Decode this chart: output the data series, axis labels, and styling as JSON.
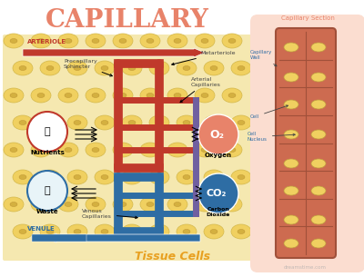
{
  "title": "CAPILLARY",
  "title_color": "#E8836A",
  "bg_color": "#FFFFFF",
  "tissue_bg_color": "#F5E6A0",
  "cell_color": "#F0D060",
  "cell_outline": "#D4B84A",
  "red_color": "#C0392B",
  "blue_color": "#2E6DA4",
  "dark_red": "#8B1A1A",
  "dark_blue": "#1A3A6A",
  "arrow_dark": "#222222",
  "section_bg": "#F5C4B0",
  "section_wall_color": "#C0634A",
  "section_cell_color": "#E8A07A",
  "section_nucleus_color": "#F0D060",
  "section_label_color": "#E8836A",
  "label_blue": "#2E6DA4",
  "tissue_cells_color": "#E8A020",
  "o2_color": "#E8836A",
  "co2_color": "#2E6DA4",
  "arteriole_label": "ARTERIOLE",
  "venule_label": "VENULE",
  "section_title": "Capillary Section",
  "tissue_cells_label": "Tissue Cells"
}
